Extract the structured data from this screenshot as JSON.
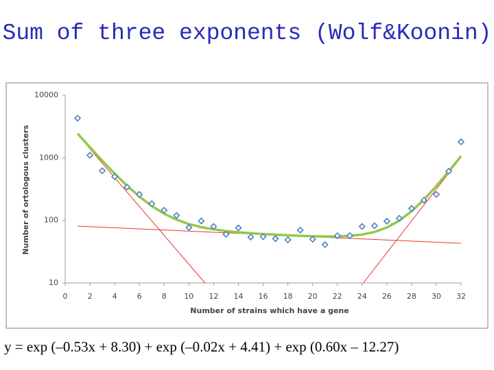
{
  "title": "Sum of three exponents (Wolf&Koonin)",
  "formula": "y = exp (–0.53x + 8.30) + exp (–0.02x + 4.41) + exp (0.60x – 12.27)",
  "chart_data": {
    "type": "scatter",
    "x_label": "Number of strains which have a gene",
    "y_label": "Number of ortologous clusters",
    "xlim": [
      0,
      32
    ],
    "xticks": [
      0,
      2,
      4,
      6,
      8,
      10,
      12,
      14,
      16,
      18,
      20,
      22,
      24,
      26,
      28,
      30,
      32
    ],
    "ylim": [
      10,
      10000
    ],
    "yticks": [
      10,
      100,
      1000,
      10000
    ],
    "log_y": true,
    "grid": false,
    "series": [
      {
        "kind": "line",
        "color": "#e8332a",
        "width": 1,
        "x": [
          1,
          11.3
        ],
        "values": [
          2368,
          10
        ]
      },
      {
        "kind": "line",
        "color": "#e8332a",
        "width": 1,
        "x": [
          1,
          32
        ],
        "values": [
          81,
          43
        ]
      },
      {
        "kind": "line",
        "color": "#e8332a",
        "width": 1,
        "x": [
          24.1,
          32
        ],
        "values": [
          10,
          1020
        ]
      },
      {
        "kind": "line",
        "color": "#92c84a",
        "width": 3.5,
        "x": [
          1,
          2,
          3,
          4,
          5,
          6,
          7,
          8,
          9,
          10,
          11,
          12,
          13,
          14,
          15,
          16,
          17,
          18,
          19,
          20,
          21,
          22,
          23,
          24,
          25,
          26,
          27,
          28,
          29,
          30,
          31,
          32
        ],
        "values": [
          2449,
          1473,
          899,
          559,
          359,
          240,
          170,
          128,
          103,
          87.5,
          78,
          72,
          67.5,
          64.6,
          62.4,
          60.5,
          59.2,
          57.9,
          56.8,
          55.9,
          55.4,
          55.5,
          56.6,
          59.4,
          65.3,
          77,
          99,
          140,
          215,
          353,
          605,
          1065
        ]
      },
      {
        "kind": "markers",
        "color": "#4f81bd",
        "x": [
          1,
          2,
          3,
          4,
          5,
          6,
          7,
          8,
          9,
          10,
          11,
          12,
          13,
          14,
          15,
          16,
          17,
          18,
          19,
          20,
          21,
          22,
          23,
          24,
          25,
          26,
          27,
          28,
          29,
          30,
          31,
          32
        ],
        "values": [
          4300,
          1100,
          620,
          500,
          340,
          260,
          185,
          145,
          120,
          77,
          98,
          80,
          60,
          76,
          54,
          55,
          51,
          49,
          70,
          50,
          41,
          57,
          57,
          80,
          82,
          97,
          108,
          155,
          210,
          260,
          610,
          1800
        ]
      }
    ]
  }
}
